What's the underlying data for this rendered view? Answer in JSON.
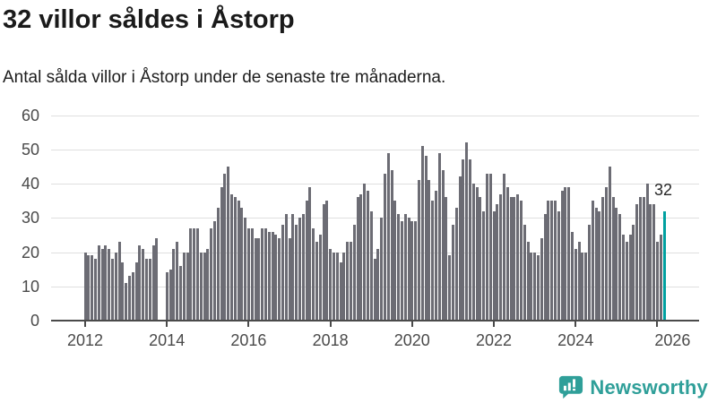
{
  "header": {
    "title": "32 villor såldes i Åstorp",
    "subtitle": "Antal sålda villor i Åstorp under de senaste tre månaderna."
  },
  "annotation": {
    "value": "32"
  },
  "footer": {
    "brand": "Newsworthy",
    "logo_icon": "newsworthy-speech-bubble-bar-chart-icon"
  },
  "colors": {
    "background": "#ffffff",
    "bar": "#6c6c74",
    "highlight": "#00a0a0",
    "grid": "#dfdfdf",
    "axis": "#4a4a4a",
    "tick_label": "#4a4a4a",
    "title_text": "#1a1a1a",
    "brand_teal": "#2f9f99"
  },
  "chart_data": {
    "type": "bar",
    "title": "32 villor såldes i Åstorp",
    "subtitle": "Antal sålda villor i Åstorp under de senaste tre månaderna.",
    "x_period": "monthly rolling 3-month sales count, 2012 to early 2026",
    "x_tick_years": [
      2012,
      2014,
      2016,
      2018,
      2020,
      2022,
      2024,
      2026
    ],
    "y_ticks": [
      0,
      10,
      20,
      30,
      40,
      50,
      60
    ],
    "ylim": [
      0,
      60
    ],
    "grid": "horizontal",
    "legend": "none",
    "gap_indices": [
      22,
      23
    ],
    "highlight_last": true,
    "highlight_value": 32,
    "values": [
      20,
      19,
      19,
      18,
      22,
      21,
      22,
      21,
      18,
      20,
      23,
      17,
      11,
      13,
      14,
      17,
      22,
      21,
      18,
      18,
      22,
      24,
      0,
      0,
      14,
      15,
      21,
      23,
      16,
      20,
      20,
      27,
      27,
      27,
      20,
      20,
      21,
      27,
      29,
      33,
      39,
      43,
      45,
      37,
      36,
      35,
      33,
      30,
      27,
      27,
      24,
      24,
      27,
      27,
      26,
      26,
      25,
      24,
      28,
      31,
      24,
      31,
      28,
      30,
      31,
      35,
      39,
      27,
      23,
      25,
      34,
      35,
      21,
      20,
      20,
      17,
      20,
      23,
      23,
      28,
      36,
      37,
      40,
      38,
      32,
      18,
      21,
      30,
      43,
      49,
      44,
      35,
      31,
      29,
      31,
      30,
      29,
      29,
      41,
      51,
      48,
      41,
      35,
      38,
      49,
      44,
      36,
      19,
      28,
      33,
      42,
      47,
      52,
      47,
      40,
      39,
      36,
      32,
      43,
      43,
      32,
      34,
      37,
      43,
      39,
      36,
      36,
      37,
      35,
      28,
      23,
      20,
      20,
      19,
      24,
      31,
      35,
      35,
      35,
      32,
      38,
      39,
      39,
      26,
      21,
      23,
      20,
      20,
      28,
      35,
      33,
      32,
      36,
      39,
      45,
      36,
      33,
      31,
      25,
      23,
      25,
      28,
      34,
      36,
      36,
      40,
      34,
      34,
      23,
      25,
      32
    ]
  }
}
